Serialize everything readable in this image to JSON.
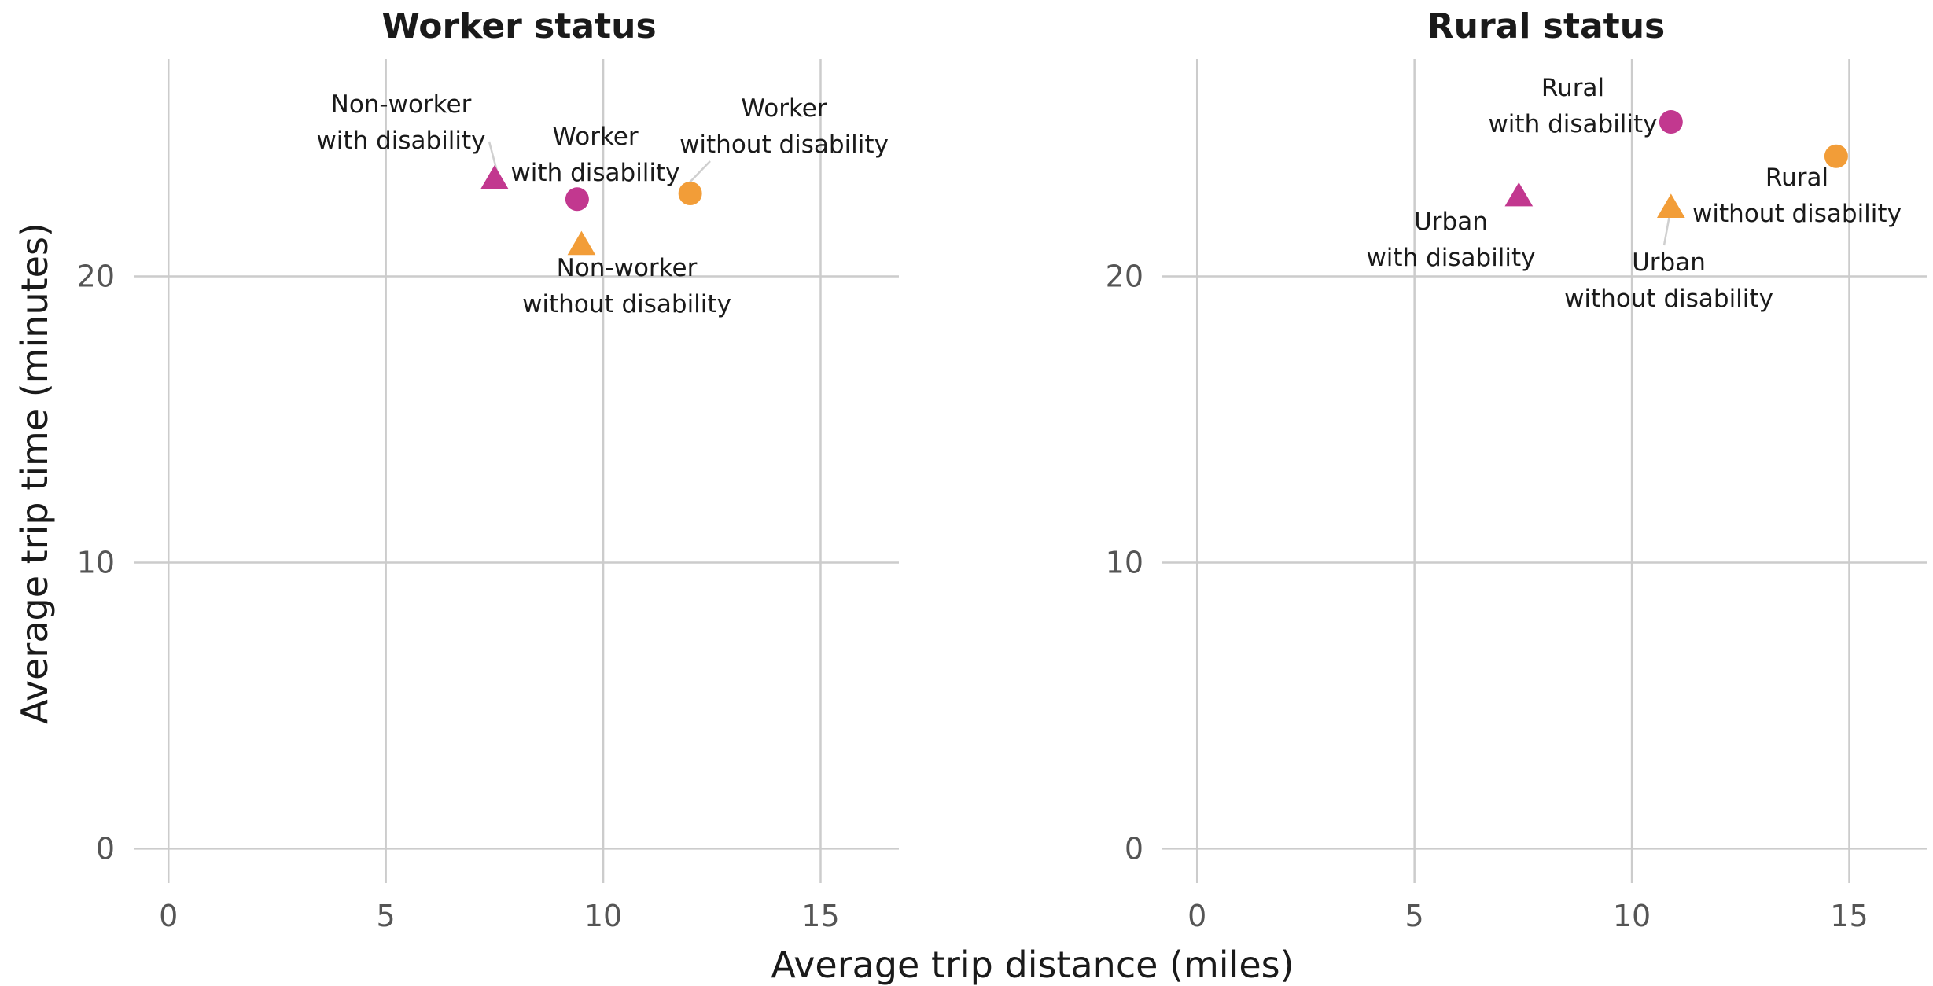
{
  "chart_data": [
    {
      "type": "scatter",
      "title": "Worker status",
      "xlim": [
        -0.8,
        16.8
      ],
      "ylim": [
        -1.2,
        27.6
      ],
      "x_ticks": [
        0,
        5,
        10,
        15
      ],
      "y_ticks": [
        0,
        10,
        20
      ],
      "grid": true,
      "points": [
        {
          "label_lines": [
            "Non-worker",
            "with disability"
          ],
          "x": 7.5,
          "y": 23.4,
          "shape": "triangle",
          "color": "#c2388f"
        },
        {
          "label_lines": [
            "Worker",
            "with disability"
          ],
          "x": 9.4,
          "y": 22.7,
          "shape": "circle",
          "color": "#c2388f"
        },
        {
          "label_lines": [
            "Worker",
            "without disability"
          ],
          "x": 12.0,
          "y": 22.9,
          "shape": "circle",
          "color": "#f29d38"
        },
        {
          "label_lines": [
            "Non-worker",
            "without disability"
          ],
          "x": 9.5,
          "y": 21.1,
          "shape": "triangle",
          "color": "#f29d38"
        }
      ]
    },
    {
      "type": "scatter",
      "title": "Rural status",
      "xlim": [
        -0.8,
        16.8
      ],
      "ylim": [
        -1.2,
        27.6
      ],
      "x_ticks": [
        0,
        5,
        10,
        15
      ],
      "y_ticks": [
        0,
        10,
        20
      ],
      "grid": true,
      "points": [
        {
          "label_lines": [
            "Rural",
            "with disability"
          ],
          "x": 10.9,
          "y": 25.4,
          "shape": "circle",
          "color": "#c2388f"
        },
        {
          "label_lines": [
            "Rural",
            "without disability"
          ],
          "x": 14.7,
          "y": 24.2,
          "shape": "circle",
          "color": "#f29d38"
        },
        {
          "label_lines": [
            "Urban",
            "with disability"
          ],
          "x": 7.4,
          "y": 22.8,
          "shape": "triangle",
          "color": "#c2388f"
        },
        {
          "label_lines": [
            "Urban",
            "without disability"
          ],
          "x": 10.9,
          "y": 22.4,
          "shape": "triangle",
          "color": "#f29d38"
        }
      ]
    }
  ],
  "axes": {
    "xlabel": "Average trip distance (miles)",
    "ylabel": "Average trip time (minutes)"
  }
}
